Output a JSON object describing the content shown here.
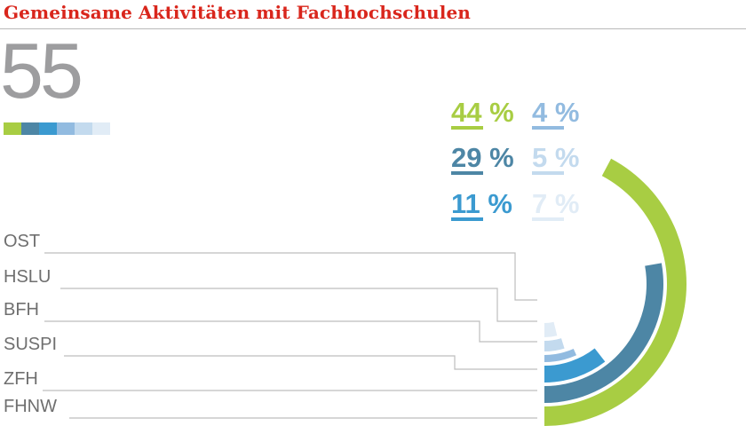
{
  "header": {
    "title": "Gemeinsame Aktivitäten mit Fachhochschulen"
  },
  "total": "55",
  "colors": [
    "#a8cd43",
    "#4d86a5",
    "#3b9ad0",
    "#92bbe0",
    "#c3daee",
    "#e1ecf6"
  ],
  "chart_data": {
    "type": "radial-bar",
    "total": 55,
    "series": [
      {
        "label": "FHNW",
        "percent": 44,
        "percent_label": "44 %"
      },
      {
        "label": "ZFH",
        "percent": 29,
        "percent_label": "29 %"
      },
      {
        "label": "SUSPI",
        "percent": 11,
        "percent_label": "11 %"
      },
      {
        "label": "BFH",
        "percent": 7,
        "percent_label": "7 %"
      },
      {
        "label": "HSLU",
        "percent": 5,
        "percent_label": "5 %"
      },
      {
        "label": "OST",
        "percent": 4,
        "percent_label": "4 %"
      }
    ],
    "labels_top_to_bottom": [
      "OST",
      "HSLU",
      "BFH",
      "SUSPI",
      "ZFH",
      "FHNW"
    ],
    "legend_order": [
      "44 %",
      "29 %",
      "11 %",
      "4 %",
      "5 %",
      "7 %"
    ]
  }
}
